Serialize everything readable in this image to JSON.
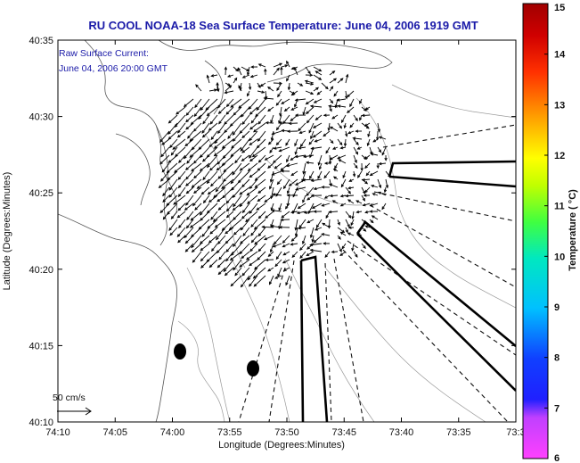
{
  "title": "RU COOL  NOAA-18  Sea Surface Temperature:  June 04, 2006 1919 GMT",
  "current_label": "Raw Surface Current:",
  "current_time": "June 04, 2006 20:00 GMT",
  "xlabel": "Longitude (Degrees:Minutes)",
  "ylabel": "Latitude (Degrees:Minutes)",
  "x_ticks": [
    "74:10",
    "74:05",
    "74:00",
    "73:55",
    "73:50",
    "73:45",
    "73:40",
    "73:35",
    "73:3"
  ],
  "y_ticks": [
    "40:35",
    "40:30",
    "40:25",
    "40:20",
    "40:15",
    "40:10"
  ],
  "colorbar": {
    "label": "Temperature ( °C)",
    "ticks": [
      "15",
      "14",
      "13",
      "12",
      "11",
      "10",
      "9",
      "8",
      "7",
      "6"
    ],
    "min": 6,
    "max": 15
  },
  "scale_label": "50 cm/s"
}
